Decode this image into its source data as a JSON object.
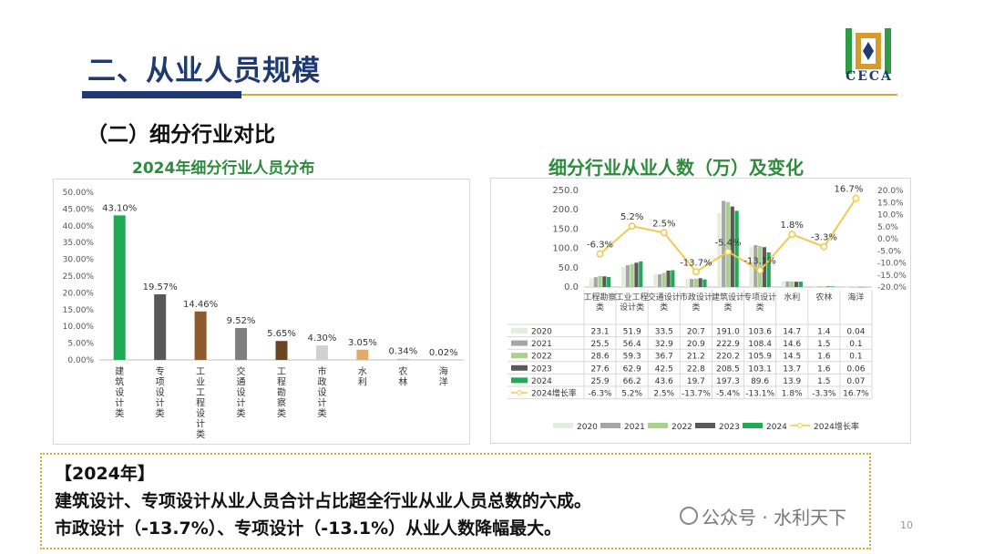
{
  "header": {
    "title": "二、从业人员规模",
    "logo_text": "CECA"
  },
  "section": {
    "subtitle": "（二）细分行业对比"
  },
  "chart_data": [
    {
      "type": "bar",
      "title": "2024年细分行业人员分布",
      "categories": [
        "建筑设计类",
        "专项设计类",
        "工业工程设计类",
        "交通设计类",
        "工程勘察类",
        "市政设计类",
        "水利",
        "农林",
        "海洋"
      ],
      "values": [
        43.1,
        19.57,
        14.46,
        9.52,
        5.65,
        4.3,
        3.05,
        0.34,
        0.02
      ],
      "labels": [
        "43.10%",
        "19.57%",
        "14.46%",
        "9.52%",
        "5.65%",
        "4.30%",
        "3.05%",
        "0.34%",
        "0.02%"
      ],
      "colors": [
        "#1fab54",
        "#595959",
        "#8c5a2b",
        "#7f7f7f",
        "#6b4423",
        "#d0d0d0",
        "#e0a96d",
        "#bdbdbd",
        "#bdbdbd"
      ],
      "yticks": [
        "0.00%",
        "5.00%",
        "10.00%",
        "15.00%",
        "20.00%",
        "25.00%",
        "30.00%",
        "35.00%",
        "40.00%",
        "45.00%",
        "50.00%"
      ],
      "ylim": [
        0,
        50
      ]
    },
    {
      "type": "bar",
      "title": "细分行业从业人数（万）及变化",
      "categories": [
        "工程勘察类",
        "工业工程设计类",
        "交通设计类",
        "市政设计类",
        "建筑设计类",
        "专项设计类",
        "水利",
        "农林",
        "海洋"
      ],
      "series": [
        {
          "name": "2020",
          "color": "#e2efda",
          "values": [
            23.1,
            51.9,
            33.5,
            20.7,
            191.0,
            103.6,
            14.7,
            1.4,
            0.04
          ]
        },
        {
          "name": "2021",
          "color": "#a6a6a6",
          "values": [
            25.5,
            56.4,
            32.9,
            20.9,
            222.9,
            108.4,
            14.6,
            1.5,
            0.1
          ]
        },
        {
          "name": "2022",
          "color": "#a9d18e",
          "values": [
            28.6,
            59.3,
            36.7,
            21.2,
            220.2,
            105.9,
            14.5,
            1.6,
            0.1
          ]
        },
        {
          "name": "2023",
          "color": "#595959",
          "values": [
            27.6,
            62.9,
            42.5,
            22.8,
            208.5,
            103.1,
            13.7,
            1.6,
            0.06
          ]
        },
        {
          "name": "2024",
          "color": "#1fab54",
          "values": [
            25.9,
            66.2,
            43.6,
            19.7,
            197.3,
            89.6,
            13.9,
            1.5,
            0.07
          ]
        }
      ],
      "cell_text": [
        [
          "23.1",
          "51.9",
          "33.5",
          "20.7",
          "191.0",
          "103.6",
          "14.7",
          "1.4",
          "0.04"
        ],
        [
          "25.5",
          "56.4",
          "32.9",
          "20.9",
          "222.9",
          "108.4",
          "14.6",
          "1.5",
          "0.1"
        ],
        [
          "28.6",
          "59.3",
          "36.7",
          "21.2",
          "220.2",
          "105.9",
          "14.5",
          "1.6",
          "0.1"
        ],
        [
          "27.6",
          "62.9",
          "42.5",
          "22.8",
          "208.5",
          "103.1",
          "13.7",
          "1.6",
          "0.06"
        ],
        [
          "25.9",
          "66.2",
          "43.6",
          "19.7",
          "197.3",
          "89.6",
          "13.9",
          "1.5",
          "0.07"
        ]
      ],
      "growth": {
        "name": "2024增长率",
        "color": "#f2c94c",
        "values": [
          -6.3,
          5.2,
          2.5,
          -13.7,
          -5.4,
          -13.1,
          1.8,
          -3.3,
          16.7
        ],
        "labels": [
          "-6.3%",
          "5.2%",
          "2.5%",
          "-13.7%",
          "-5.4%",
          "-13.1%",
          "1.8%",
          "-3.3%",
          "16.7%"
        ]
      },
      "y_left_ticks": [
        "0.0",
        "50.0",
        "100.0",
        "150.0",
        "200.0",
        "250.0"
      ],
      "y_right_ticks": [
        "-20.0%",
        "-15.0%",
        "-10.0%",
        "-5.0%",
        "0.0%",
        "5.0%",
        "10.0%",
        "15.0%",
        "20.0%"
      ],
      "ylim": [
        0,
        250
      ],
      "y2lim": [
        -20,
        20
      ],
      "legend_position": "bottom"
    }
  ],
  "note": {
    "heading": "【2024年】",
    "line1": "建筑设计、专项设计从业人员合计占比超全行业从业人员总数的六成。",
    "line2": "市政设计（-13.7%）、专项设计（-13.1%）从业人数降幅最大。"
  },
  "watermark": "公众号 · 水利天下",
  "page_number": "10"
}
